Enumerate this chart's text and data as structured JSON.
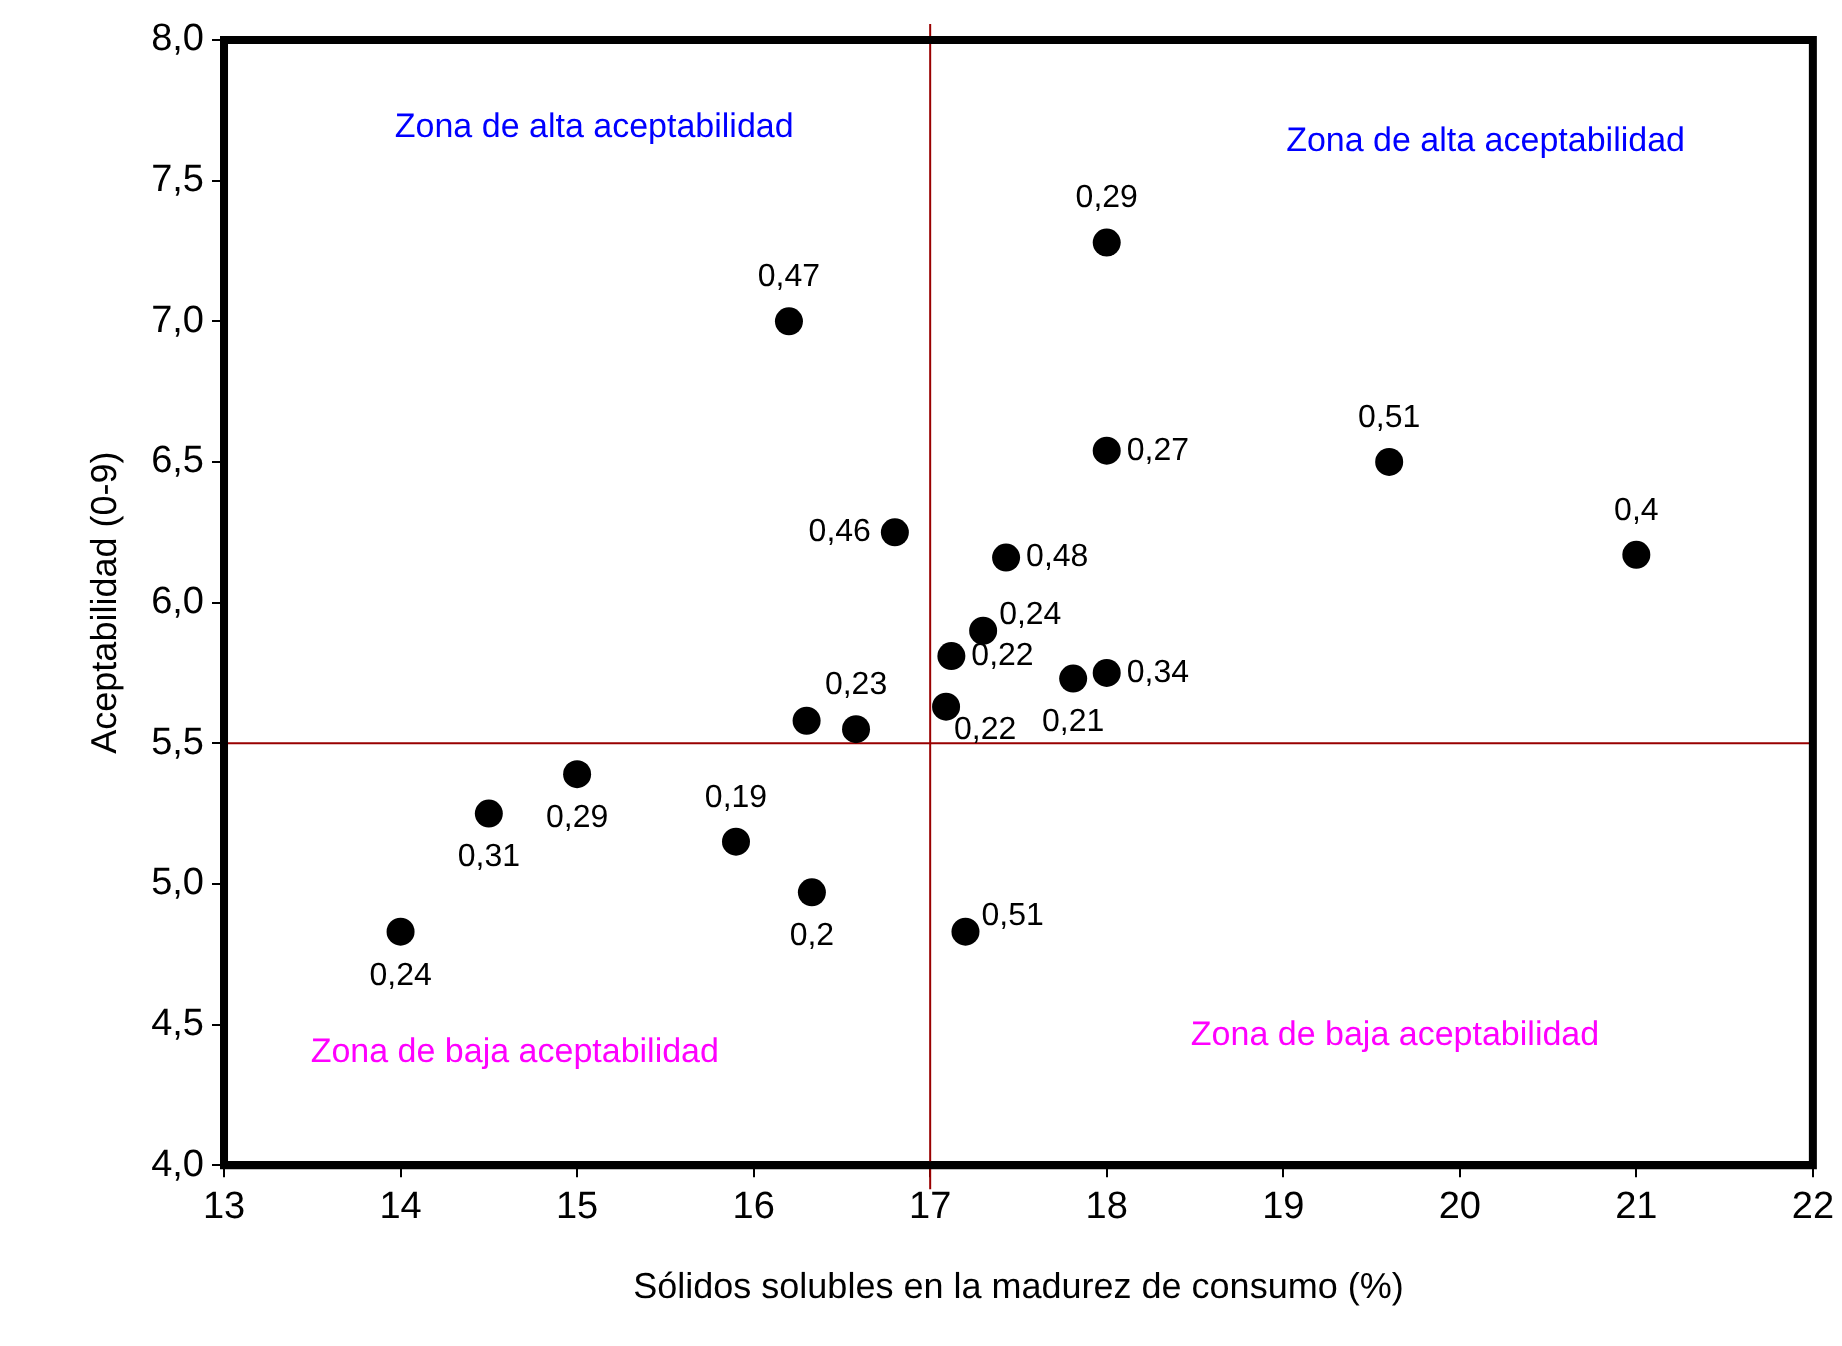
{
  "chart_data": {
    "type": "scatter",
    "xlabel": "Sólidos solubles en la madurez de consumo (%)",
    "ylabel": "Aceptabilidad (0-9)",
    "xlim": [
      13,
      22
    ],
    "xticks": [
      13,
      14,
      15,
      16,
      17,
      18,
      19,
      20,
      21,
      22
    ],
    "ylim": [
      4,
      8
    ],
    "yticks": [
      {
        "value": 4,
        "label": "4,0"
      },
      {
        "value": 4.5,
        "label": "4,5"
      },
      {
        "value": 5,
        "label": "5,0"
      },
      {
        "value": 5.5,
        "label": "5,5"
      },
      {
        "value": 6,
        "label": "6,0"
      },
      {
        "value": 6.5,
        "label": "6,5"
      },
      {
        "value": 7,
        "label": "7,0"
      },
      {
        "value": 7.5,
        "label": "7,5"
      },
      {
        "value": 8,
        "label": "8,0"
      }
    ],
    "grid": false,
    "legend": false,
    "marker": "circle",
    "series": [
      {
        "color": "#000000",
        "x": [
          14.0,
          14.5,
          15.0,
          15.9,
          16.33,
          16.3,
          16.58,
          16.2,
          16.8,
          17.09,
          17.12,
          17.3,
          17.2,
          17.43,
          17.81,
          18.0,
          18.0,
          18.0,
          19.6,
          21.0
        ],
        "values": [
          4.83,
          5.25,
          5.39,
          5.15,
          4.97,
          5.58,
          5.55,
          7.0,
          6.25,
          5.63,
          5.81,
          5.9,
          4.83,
          6.16,
          5.73,
          5.75,
          6.54,
          7.28,
          6.5,
          6.17
        ]
      }
    ],
    "ref_lines": [
      {
        "axis": "x",
        "value": 17,
        "color": "#990000"
      },
      {
        "axis": "y",
        "value": 5.5,
        "color": "#990000"
      }
    ],
    "annotations": [
      "Zona de alta aceptabilidad",
      "Zona de alta aceptabilidad",
      "Zona de baja aceptabilidad",
      "Zona de baja aceptabilidad",
      {
        "text": "0,24",
        "x": 14.0,
        "y": 4.83
      },
      {
        "text": "0,31",
        "x": 14.5,
        "y": 5.25
      },
      {
        "text": "0,29",
        "x": 15.0,
        "y": 5.39
      },
      {
        "text": "0,19",
        "x": 15.9,
        "y": 5.15
      },
      {
        "text": "0,2",
        "x": 16.33,
        "y": 4.97
      },
      {
        "text": "0,23",
        "x": 16.58,
        "y": 5.55
      },
      {
        "text": "0,47",
        "x": 16.2,
        "y": 7.0
      },
      {
        "text": "0,46",
        "x": 16.8,
        "y": 6.25
      },
      {
        "text": "0,22",
        "x": 17.09,
        "y": 5.63
      },
      {
        "text": "0,22",
        "x": 17.12,
        "y": 5.81
      },
      {
        "text": "0,24",
        "x": 17.3,
        "y": 5.9
      },
      {
        "text": "0,51",
        "x": 17.2,
        "y": 4.83
      },
      {
        "text": "0,48",
        "x": 17.43,
        "y": 6.16
      },
      {
        "text": "0,21",
        "x": 17.81,
        "y": 5.73
      },
      {
        "text": "0,34",
        "x": 18.0,
        "y": 5.75
      },
      {
        "text": "0,27",
        "x": 18.0,
        "y": 6.54
      },
      {
        "text": "0,29",
        "x": 18.0,
        "y": 7.28
      },
      {
        "text": "0,51",
        "x": 19.6,
        "y": 6.5
      },
      {
        "text": "0,4",
        "x": 21.0,
        "y": 6.17
      }
    ]
  }
}
